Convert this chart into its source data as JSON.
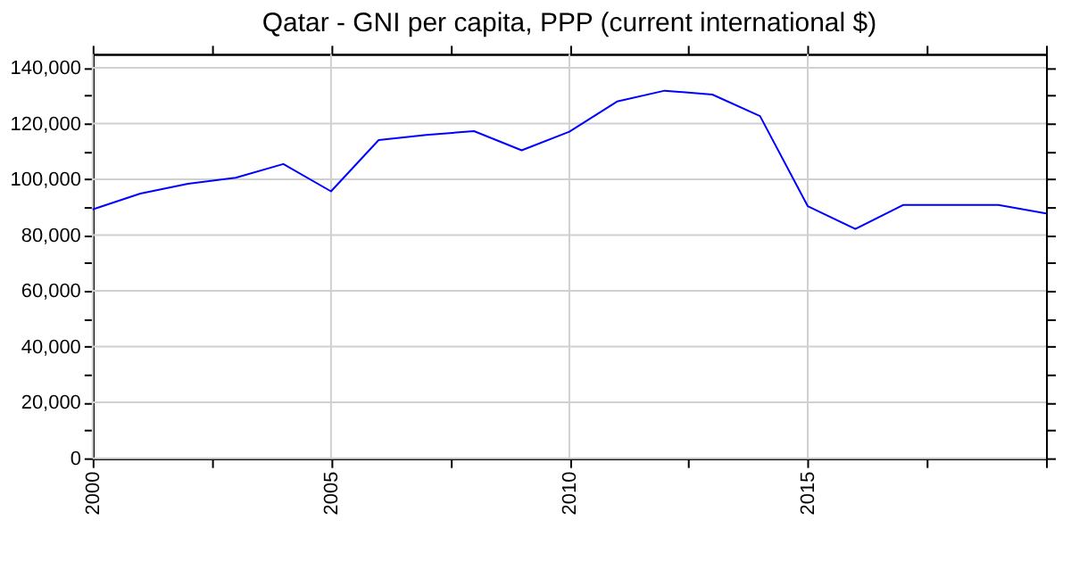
{
  "chart_data": {
    "type": "line",
    "title": "Qatar - GNI per capita, PPP (current international $)",
    "x": [
      2000,
      2001,
      2002,
      2003,
      2004,
      2005,
      2006,
      2007,
      2008,
      2009,
      2010,
      2011,
      2012,
      2013,
      2014,
      2015,
      2016,
      2017,
      2018,
      2019,
      2020
    ],
    "series": [
      {
        "color": "#0000ff",
        "values": [
          89200,
          94900,
          98400,
          100600,
          105500,
          95700,
          114100,
          115900,
          117300,
          110400,
          117100,
          127900,
          131800,
          130400,
          122700,
          90400,
          82200,
          90800,
          90800,
          90800,
          87800
        ]
      }
    ],
    "xlim": [
      2000,
      2020
    ],
    "xticks": [
      {
        "value": 2000,
        "label": "2000"
      },
      {
        "value": 2002.5,
        "label": null
      },
      {
        "value": 2005,
        "label": "2005"
      },
      {
        "value": 2007.5,
        "label": null
      },
      {
        "value": 2010,
        "label": "2010"
      },
      {
        "value": 2012.5,
        "label": null
      },
      {
        "value": 2015,
        "label": "2015"
      },
      {
        "value": 2017.5,
        "label": null
      },
      {
        "value": 2020,
        "label": null
      }
    ],
    "ylim": [
      0,
      145000
    ],
    "yticks": [
      {
        "value": 0,
        "label": "0"
      },
      {
        "value": 10000,
        "label": null
      },
      {
        "value": 20000,
        "label": "20,000"
      },
      {
        "value": 30000,
        "label": null
      },
      {
        "value": 40000,
        "label": "40,000"
      },
      {
        "value": 50000,
        "label": null
      },
      {
        "value": 60000,
        "label": "60,000"
      },
      {
        "value": 70000,
        "label": null
      },
      {
        "value": 80000,
        "label": "80,000"
      },
      {
        "value": 90000,
        "label": null
      },
      {
        "value": 100000,
        "label": "100,000"
      },
      {
        "value": 110000,
        "label": null
      },
      {
        "value": 120000,
        "label": "120,000"
      },
      {
        "value": 130000,
        "label": null
      },
      {
        "value": 140000,
        "label": "140,000"
      }
    ],
    "grid": true,
    "marker": "none",
    "line_style": "solid"
  }
}
